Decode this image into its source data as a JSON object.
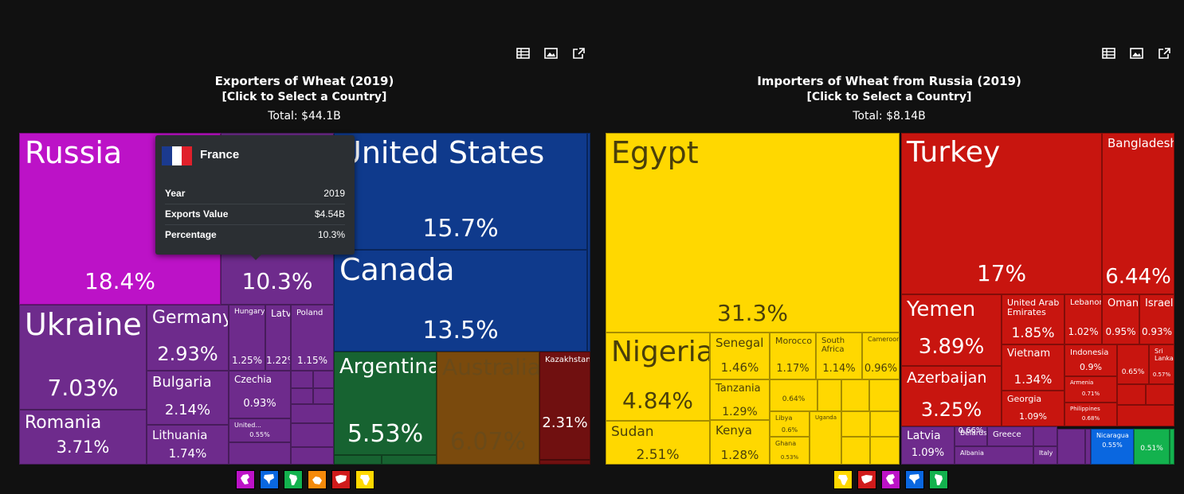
{
  "colors": {
    "europe": "#6e2b8c",
    "russia": "#bc12c7",
    "north_america": "#0f3a8c",
    "south_america": "#176331",
    "oceania": "#7a4a0d",
    "asia": "#701010",
    "africa": "#ffd800",
    "middle_east": "#c8150f",
    "america": "#0a67e0",
    "green": "#13b24e"
  },
  "left": {
    "title": "Exporters of Wheat (2019)",
    "subtitle": "[Click to Select a Country]",
    "total": "Total: $44.1B",
    "tools": [
      "table-icon",
      "image-icon",
      "external-link-icon"
    ],
    "legend": [
      "europe-icon",
      "north-america-icon",
      "south-america-icon",
      "oceania-icon",
      "asia-icon",
      "africa-icon"
    ],
    "tooltip": {
      "country": "France",
      "rows": [
        {
          "label": "Year",
          "value": "2019"
        },
        {
          "label": "Exports Value",
          "value": "$4.54B"
        },
        {
          "label": "Percentage",
          "value": "10.3%"
        }
      ]
    }
  },
  "right": {
    "title": "Importers of Wheat from Russia (2019)",
    "subtitle": "[Click to Select a Country]",
    "total": "Total: $8.14B",
    "tools": [
      "table-icon",
      "image-icon",
      "external-link-icon"
    ],
    "legend": [
      "africa-icon",
      "asia-icon",
      "europe-icon",
      "north-america-icon",
      "south-america-icon"
    ]
  },
  "chart_data": [
    {
      "type": "treemap",
      "title": "Exporters of Wheat (2019)",
      "total": "$44.1B",
      "items": [
        {
          "name": "Russia",
          "value": 18.4,
          "group": "russia"
        },
        {
          "name": "France",
          "value": 10.3,
          "group": "europe"
        },
        {
          "name": "Ukraine",
          "value": 7.03,
          "group": "europe"
        },
        {
          "name": "Romania",
          "value": 3.71,
          "group": "europe"
        },
        {
          "name": "Germany",
          "value": 2.93,
          "group": "europe"
        },
        {
          "name": "Bulgaria",
          "value": 2.14,
          "group": "europe"
        },
        {
          "name": "Lithuania",
          "value": 1.74,
          "group": "europe"
        },
        {
          "name": "Hungary",
          "value": 1.25,
          "group": "europe"
        },
        {
          "name": "Latvia",
          "value": 1.22,
          "group": "europe"
        },
        {
          "name": "Poland",
          "value": 1.15,
          "group": "europe"
        },
        {
          "name": "Czechia",
          "value": 0.93,
          "group": "europe"
        },
        {
          "name": "United...",
          "value": 0.55,
          "group": "europe"
        },
        {
          "name": "United States",
          "value": 15.7,
          "group": "north_america"
        },
        {
          "name": "Canada",
          "value": 13.5,
          "group": "north_america"
        },
        {
          "name": "Argentina",
          "value": 5.53,
          "group": "south_america"
        },
        {
          "name": "Australia",
          "value": 6.07,
          "group": "oceania"
        },
        {
          "name": "Kazakhstan",
          "value": 2.31,
          "group": "asia"
        }
      ]
    },
    {
      "type": "treemap",
      "title": "Importers of Wheat from Russia (2019)",
      "total": "$8.14B",
      "items": [
        {
          "name": "Egypt",
          "value": 31.3,
          "group": "africa"
        },
        {
          "name": "Nigeria",
          "value": 4.84,
          "group": "africa"
        },
        {
          "name": "Sudan",
          "value": 2.51,
          "group": "africa"
        },
        {
          "name": "Senegal",
          "value": 1.46,
          "group": "africa"
        },
        {
          "name": "Tanzania",
          "value": 1.29,
          "group": "africa"
        },
        {
          "name": "Kenya",
          "value": 1.28,
          "group": "africa"
        },
        {
          "name": "Morocco",
          "value": 1.17,
          "group": "africa"
        },
        {
          "name": "South Africa",
          "value": 1.14,
          "group": "africa"
        },
        {
          "name": "Cameroon",
          "value": 0.96,
          "group": "africa"
        },
        {
          "name": "",
          "value": 0.64,
          "group": "africa"
        },
        {
          "name": "Libya",
          "value": 0.6,
          "group": "africa"
        },
        {
          "name": "Ghana",
          "value": 0.53,
          "group": "africa"
        },
        {
          "name": "Uganda",
          "value": null,
          "group": "africa"
        },
        {
          "name": "Turkey",
          "value": 17,
          "group": "middle_east"
        },
        {
          "name": "Bangladesh",
          "value": 6.44,
          "group": "middle_east"
        },
        {
          "name": "Yemen",
          "value": 3.89,
          "group": "middle_east"
        },
        {
          "name": "Azerbaijan",
          "value": 3.25,
          "group": "middle_east"
        },
        {
          "name": "United Arab Emirates",
          "value": 1.85,
          "group": "middle_east"
        },
        {
          "name": "Vietnam",
          "value": 1.34,
          "group": "middle_east"
        },
        {
          "name": "Georgia",
          "value": 1.09,
          "group": "middle_east"
        },
        {
          "name": "Lebanon",
          "value": 1.02,
          "group": "middle_east"
        },
        {
          "name": "Oman",
          "value": 0.95,
          "group": "middle_east"
        },
        {
          "name": "Israel",
          "value": 0.93,
          "group": "middle_east"
        },
        {
          "name": "Indonesia",
          "value": 0.9,
          "group": "middle_east"
        },
        {
          "name": "Armenia",
          "value": 0.71,
          "group": "middle_east"
        },
        {
          "name": "Philippines",
          "value": 0.68,
          "group": "middle_east"
        },
        {
          "name": "",
          "value": 0.65,
          "group": "middle_east"
        },
        {
          "name": "Sri Lanka",
          "value": 0.57,
          "group": "middle_east"
        },
        {
          "name": "Latvia",
          "value": 1.09,
          "group": "europe"
        },
        {
          "name": "Belarus",
          "value": 0.66,
          "group": "europe"
        },
        {
          "name": "Greece",
          "value": null,
          "group": "europe"
        },
        {
          "name": "Albania",
          "value": null,
          "group": "europe"
        },
        {
          "name": "Italy",
          "value": null,
          "group": "europe"
        },
        {
          "name": "Nicaragua",
          "value": 0.55,
          "group": "america"
        },
        {
          "name": "",
          "value": 0.51,
          "group": "green"
        }
      ]
    }
  ]
}
